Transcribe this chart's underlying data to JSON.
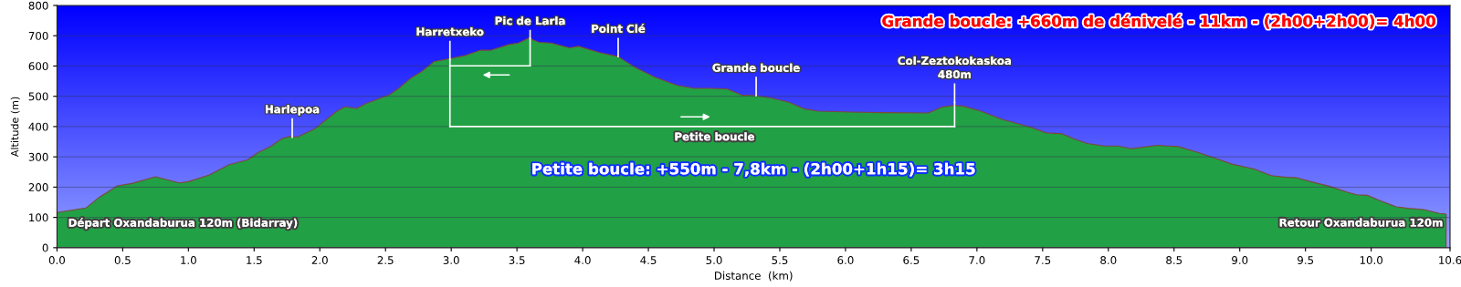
{
  "chart_data": {
    "type": "area",
    "xlabel": "Distance  (km)",
    "ylabel": "Altitude (m)",
    "x": [
      0,
      0.22,
      0.32,
      0.46,
      0.57,
      0.75,
      0.93,
      1.0,
      1.16,
      1.31,
      1.45,
      1.53,
      1.63,
      1.71,
      1.77,
      1.83,
      1.96,
      2.13,
      2.19,
      2.28,
      2.35,
      2.53,
      2.6,
      2.69,
      2.77,
      2.87,
      2.95,
      3.1,
      3.22,
      3.3,
      3.44,
      3.51,
      3.59,
      3.67,
      3.76,
      3.9,
      3.97,
      4.13,
      4.27,
      4.4,
      4.55,
      4.72,
      4.85,
      4.97,
      5.1,
      5.21,
      5.32,
      5.44,
      5.57,
      5.69,
      5.79,
      6.04,
      6.28,
      6.63,
      6.73,
      6.83,
      6.9,
      7.03,
      7.19,
      7.4,
      7.53,
      7.65,
      7.74,
      7.84,
      7.97,
      8.07,
      8.18,
      8.37,
      8.53,
      8.67,
      8.81,
      8.94,
      9.11,
      9.24,
      9.34,
      9.43,
      9.54,
      9.68,
      9.82,
      9.89,
      9.97,
      10.05,
      10.19,
      10.28,
      10.4,
      10.52,
      10.57
    ],
    "series": [
      {
        "color": "#22a045",
        "values": [
          116,
          131,
          166,
          204,
          212,
          234,
          214,
          218,
          240,
          274,
          290,
          314,
          335,
          360,
          367,
          365,
          392,
          451,
          465,
          460,
          476,
          505,
          526,
          559,
          580,
          615,
          621,
          634,
          652,
          652,
          671,
          676,
          692,
          678,
          676,
          660,
          665,
          644,
          631,
          595,
          563,
          536,
          526,
          526,
          524,
          504,
          502,
          494,
          480,
          458,
          451,
          448,
          446,
          445,
          464,
          470,
          467,
          451,
          424,
          399,
          379,
          376,
          359,
          344,
          336,
          336,
          327,
          338,
          334,
          316,
          296,
          276,
          260,
          238,
          233,
          231,
          218,
          203,
          183,
          175,
          173,
          158,
          135,
          130,
          126,
          113,
          111
        ]
      }
    ],
    "xlim": [
      0,
      10.6
    ],
    "xticks": [
      {
        "value": 0,
        "label": "0.0"
      },
      0.5,
      {
        "value": 1,
        "label": "1.0"
      },
      1.5,
      {
        "value": 2,
        "label": "2.0"
      },
      2.5,
      {
        "value": 3,
        "label": "3.0"
      },
      3.5,
      {
        "value": 4,
        "label": "4.0"
      },
      4.5,
      {
        "value": 5,
        "label": "5.0"
      },
      5.5,
      {
        "value": 6,
        "label": "6.0"
      },
      6.5,
      {
        "value": 7,
        "label": "7.0"
      },
      7.5,
      {
        "value": 8,
        "label": "8.0"
      },
      8.5,
      {
        "value": 9,
        "label": "9.0"
      },
      9.5,
      {
        "value": 10,
        "label": "10.0"
      },
      10.6
    ],
    "ylim": [
      0,
      800
    ],
    "yticks": [
      0,
      100,
      200,
      300,
      400,
      500,
      600,
      700,
      800
    ],
    "grid": "y",
    "annotations": [
      {
        "text": "Harlepoa",
        "x": 1.79,
        "y": 365
      },
      {
        "text": "Harretxeko",
        "x": 2.99,
        "y": 621
      },
      {
        "text": "Pic de Larla",
        "x": 3.6,
        "y": 692
      },
      {
        "text": "Point Clé",
        "x": 4.27,
        "y": 631
      },
      {
        "text": "Grande boucle",
        "x": 5.32,
        "y": 502
      },
      {
        "text": "Col-Zeztokokaskoa\n480m",
        "x": 6.83,
        "y": 480
      },
      "Petite boucle",
      "Grande boucle: +660m de dénivelé - 11km - (2h00+2h00)= 4h00",
      "Petite boucle: +550m - 7,8km - (2h00+1h15)= 3h15",
      "Départ Oxandaburua 120m (Bidarray)",
      "Retour Oxandaburua 120m"
    ]
  }
}
